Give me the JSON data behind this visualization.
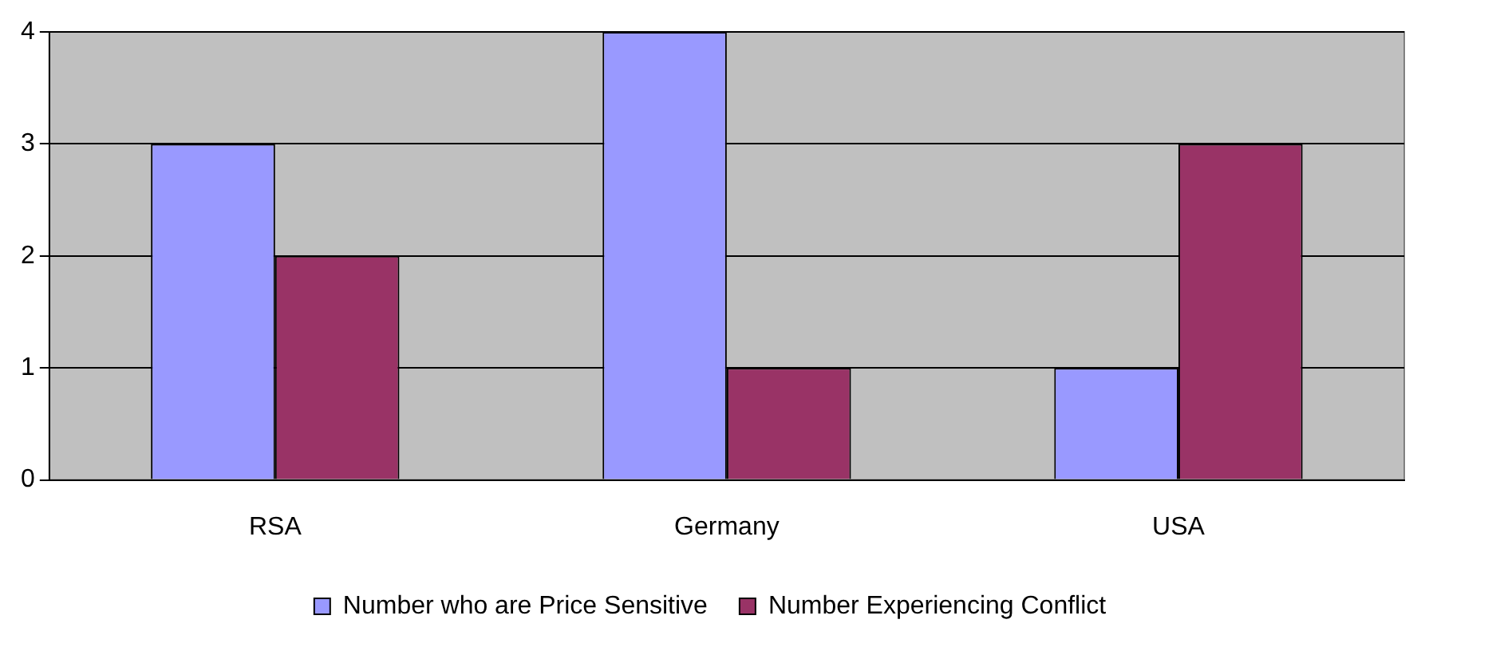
{
  "chart_data": {
    "type": "bar",
    "categories": [
      "RSA",
      "Germany",
      "USA"
    ],
    "series": [
      {
        "name": "Number who are Price Sensitive",
        "color": "#9999ff",
        "values": [
          3,
          4,
          1
        ]
      },
      {
        "name": "Number Experiencing Conflict",
        "color": "#993366",
        "values": [
          2,
          1,
          3
        ]
      }
    ],
    "ylim": [
      0,
      4
    ],
    "yticks": [
      0,
      1,
      2,
      3,
      4
    ],
    "grid": "y",
    "legend": "bottom"
  }
}
